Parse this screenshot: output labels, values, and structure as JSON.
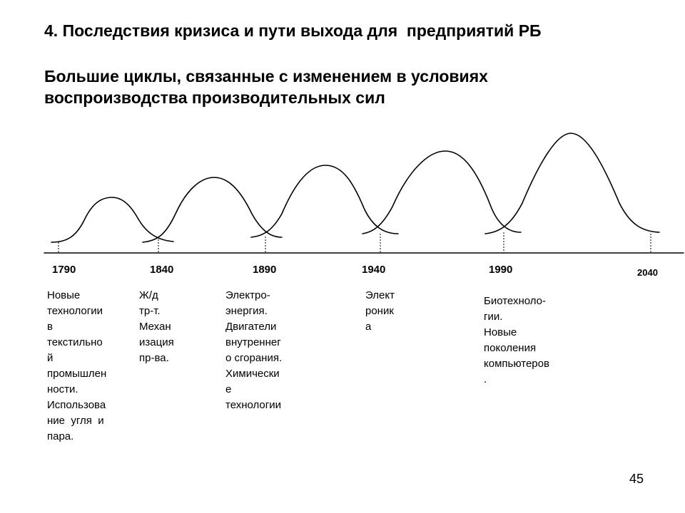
{
  "title": "4. Последствия кризиса и пути выхода для  предприятий РБ",
  "subtitle": {
    "line1": "Большие циклы, связанные с изменением в условиях",
    "line2": "воспроизводства производительных сил"
  },
  "years": [
    "1790",
    "1840",
    "1890",
    "1940",
    "1990",
    "2040"
  ],
  "notes": [
    [
      "Новые",
      "технологии",
      "в",
      "текстильно",
      "й",
      "промышлен",
      "ности.",
      "Использова",
      "ние  угля  и",
      "пара."
    ],
    [
      "Ж/д",
      "тр-т.",
      "Механ",
      "изация",
      "пр-ва."
    ],
    [
      "Электро-",
      "энергия.",
      "Двигатели",
      "внутреннег",
      "о сгорания.",
      "Химически",
      "е",
      "технологии"
    ],
    [
      "Элект",
      "роник",
      "а"
    ],
    [
      "Биотехноло-",
      "гии.",
      "Новые",
      "поколения",
      "компьютеров",
      "."
    ]
  ],
  "page_number": "45"
}
